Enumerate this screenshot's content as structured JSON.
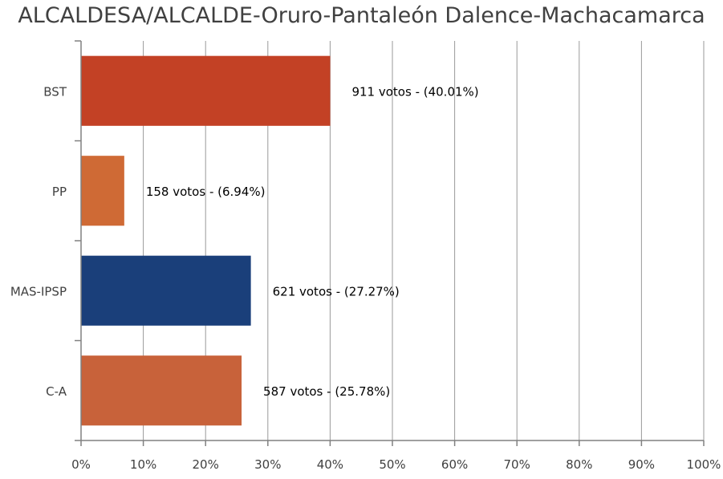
{
  "chart_data": {
    "type": "bar",
    "orientation": "horizontal",
    "title": "ALCALDESA/ALCALDE-Oruro-Pantaleón Dalence-Machacamarca",
    "categories": [
      "BST",
      "PP",
      "MAS-IPSP",
      "C-A"
    ],
    "values": [
      40.01,
      6.94,
      27.27,
      25.78
    ],
    "votes": [
      911,
      158,
      621,
      587
    ],
    "data_labels": [
      "911 votos - (40.01%)",
      "158 votos - (6.94%)",
      "621 votos - (27.27%)",
      "587 votos - (25.78%)"
    ],
    "colors": [
      "#c34125",
      "#cf6a35",
      "#1a3f7a",
      "#c8623a"
    ],
    "xlim": [
      0,
      100
    ],
    "xticks": [
      0,
      10,
      20,
      30,
      40,
      50,
      60,
      70,
      80,
      90,
      100
    ],
    "xtick_labels": [
      "0%",
      "10%",
      "20%",
      "30%",
      "40%",
      "50%",
      "60%",
      "70%",
      "80%",
      "90%",
      "100%"
    ],
    "xlabel": "",
    "ylabel": "",
    "grid": true,
    "legend": "none"
  }
}
